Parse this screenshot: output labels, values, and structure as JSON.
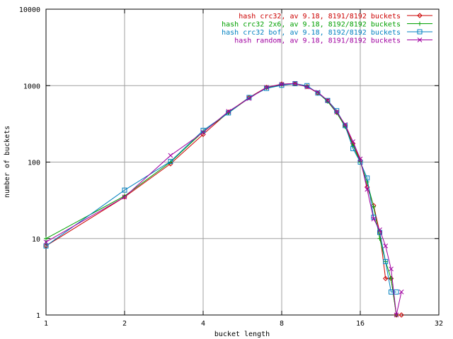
{
  "chart_data": {
    "type": "line",
    "xlabel": "bucket length",
    "ylabel": "number of buckets",
    "x_scale": "log2",
    "y_scale": "log10",
    "xlim": [
      1,
      32
    ],
    "ylim": [
      1,
      10000
    ],
    "x_ticks": [
      1,
      2,
      4,
      8,
      16,
      32
    ],
    "y_ticks": [
      1,
      10,
      100,
      1000,
      10000
    ],
    "grid": true,
    "legend_position": "top-right",
    "series": [
      {
        "name": "hash crc32, av 9.18, 8191/8192 buckets",
        "color": "#cc0000",
        "marker": "diamond",
        "x": [
          1,
          2,
          3,
          4,
          5,
          6,
          7,
          8,
          9,
          10,
          11,
          12,
          13,
          14,
          15,
          16,
          17,
          18,
          19,
          20,
          21,
          22,
          23
        ],
        "y": [
          8,
          35,
          95,
          230,
          450,
          700,
          950,
          1050,
          1060,
          970,
          800,
          630,
          450,
          300,
          175,
          105,
          47,
          27,
          12,
          3,
          3,
          1,
          1
        ]
      },
      {
        "name": "hash crc32 2x6, av 9.18, 8192/8192 buckets",
        "color": "#00a000",
        "marker": "plus",
        "x": [
          1,
          2,
          3,
          4,
          5,
          6,
          7,
          8,
          9,
          10,
          11,
          12,
          13,
          14,
          15,
          16,
          17,
          18,
          19,
          20,
          21,
          22
        ],
        "y": [
          10,
          36,
          100,
          250,
          440,
          690,
          940,
          1020,
          1060,
          980,
          810,
          620,
          440,
          290,
          165,
          100,
          55,
          26,
          10,
          5,
          3,
          1
        ]
      },
      {
        "name": "hash crc32 bof, av 9.18, 8192/8192 buckets",
        "color": "#0080c0",
        "marker": "square",
        "x": [
          1,
          2,
          3,
          4,
          5,
          6,
          7,
          8,
          9,
          10,
          11,
          12,
          13,
          14,
          15,
          16,
          17,
          18,
          19,
          20,
          21,
          22
        ],
        "y": [
          8,
          43,
          102,
          260,
          440,
          700,
          920,
          1010,
          1060,
          1000,
          800,
          640,
          470,
          300,
          150,
          100,
          62,
          19,
          12,
          5,
          2,
          2
        ]
      },
      {
        "name": "hash random, av 9.18, 8191/8192 buckets",
        "color": "#a000a0",
        "marker": "cross",
        "x": [
          1,
          2,
          3,
          4,
          5,
          6,
          7,
          8,
          9,
          10,
          11,
          12,
          13,
          14,
          15,
          16,
          17,
          18,
          19,
          20,
          21,
          22,
          23
        ],
        "y": [
          9,
          35,
          122,
          245,
          460,
          680,
          950,
          1040,
          1070,
          960,
          820,
          640,
          450,
          310,
          185,
          110,
          44,
          18,
          13,
          8,
          4,
          1,
          2
        ]
      }
    ]
  }
}
